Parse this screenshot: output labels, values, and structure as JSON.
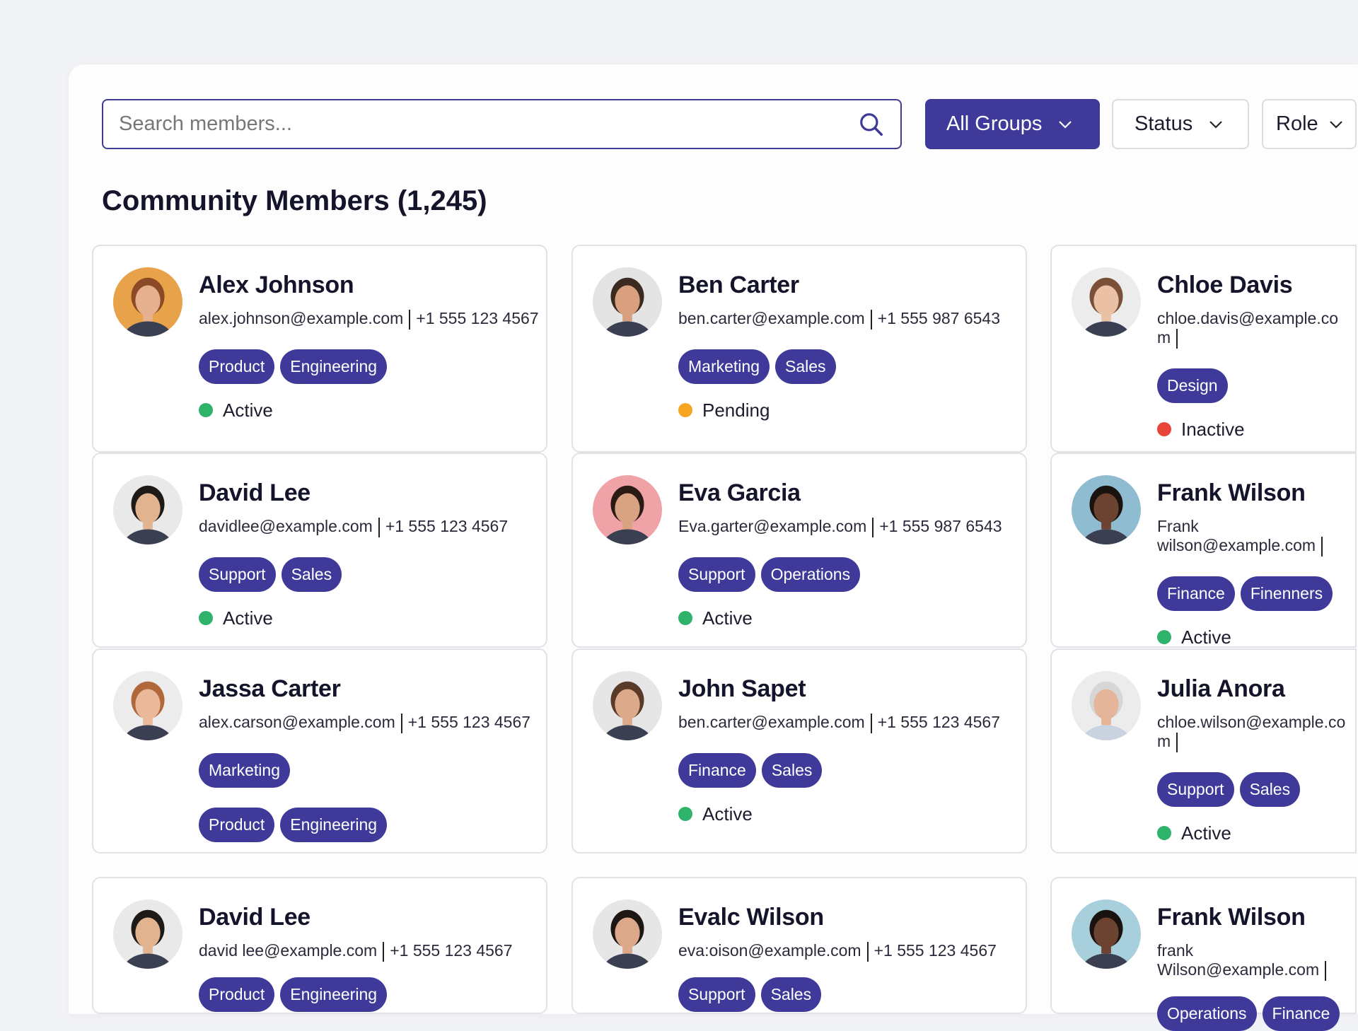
{
  "search": {
    "placeholder": "Search members..."
  },
  "filters": {
    "groups": "All Groups",
    "status": "Status",
    "role": "Role"
  },
  "title": "Community Members (1,245)",
  "colors": {
    "accent": "#3f3a99",
    "active": "#2fb36b",
    "pending": "#f6a623",
    "inactive": "#e8443a"
  },
  "members": [
    {
      "name": "Alex Johnson",
      "email": "alex.johnson@example.com",
      "phone": "+1 555 123 4567",
      "tags": [
        "Product",
        "Engineering"
      ],
      "status": "Active",
      "status_key": "active",
      "avatar_bg": "#e8a24a",
      "skin": "#e6b08f",
      "hair": "#8a4a25"
    },
    {
      "name": "Ben Carter",
      "email": "ben.carter@example.com",
      "phone": "+1 555 987 6543",
      "tags": [
        "Marketing",
        "Sales"
      ],
      "status": "Pending",
      "status_key": "pending",
      "avatar_bg": "#e4e4e4",
      "skin": "#d9a07f",
      "hair": "#3a2a20"
    },
    {
      "name": "Chloe Davis",
      "email": "chloe.davis@example.com",
      "phone": "",
      "tags": [
        "Design"
      ],
      "status": "Inactive",
      "status_key": "inactive",
      "avatar_bg": "#ececec",
      "skin": "#eac1a4",
      "hair": "#7a5038"
    },
    {
      "name": "David Lee",
      "email": "davidlee@example.com",
      "phone": "+1 555 123 4567",
      "tags": [
        "Support",
        "Sales"
      ],
      "status": "Active",
      "status_key": "active",
      "avatar_bg": "#e9e9e9",
      "skin": "#e2b38f",
      "hair": "#1e1a18"
    },
    {
      "name": "Eva Garcia",
      "email": "Eva.garter@example.com",
      "phone": "+1 555 987 6543",
      "tags": [
        "Support",
        "Operations"
      ],
      "status": "Active",
      "status_key": "active",
      "avatar_bg": "#f0a3a6",
      "skin": "#d9a283",
      "hair": "#2a1a14"
    },
    {
      "name": "Frank Wilson",
      "email": "Frank wilson@example.com",
      "phone": "",
      "tags": [
        "Finance",
        "Finenners"
      ],
      "status": "Active",
      "status_key": "active",
      "avatar_bg": "#8fbcd0",
      "skin": "#6b4330",
      "hair": "#1a120e"
    },
    {
      "name": "Jassa Carter",
      "email": "alex.carson@example.com",
      "phone": "+1 555 123 4567",
      "tags": [
        "Marketing"
      ],
      "tags2": [
        "Product",
        "Engineering"
      ],
      "status": "",
      "status_key": "",
      "avatar_bg": "#ececec",
      "skin": "#eab99a",
      "hair": "#b0683a"
    },
    {
      "name": "John Sapet",
      "email": "ben.carter@example.com",
      "phone": "+1 555 123 4567",
      "tags": [
        "Finance",
        "Sales"
      ],
      "status": "Active",
      "status_key": "active",
      "avatar_bg": "#e6e6e6",
      "skin": "#dcaa8a",
      "hair": "#5a3a28"
    },
    {
      "name": "Julia Anora",
      "email": "chloe.wilson@example.com",
      "phone": "",
      "tags": [
        "Support",
        "Sales"
      ],
      "status": "Active",
      "status_key": "active",
      "avatar_bg": "#ececec",
      "skin": "#e4b598",
      "hair": "#d6d6d6"
    },
    {
      "name": "David Lee",
      "email": "david lee@example.com",
      "phone": "+1 555 123 4567",
      "tags": [
        "Product",
        "Engineering"
      ],
      "status": "",
      "status_key": "",
      "avatar_bg": "#e9e9e9",
      "skin": "#e2b38f",
      "hair": "#1e1a18"
    },
    {
      "name": "Evalc Wilson",
      "email": "eva:oison@example.com",
      "phone": "+1 555 123 4567",
      "tags": [
        "Support",
        "Sales"
      ],
      "status": "",
      "status_key": "",
      "avatar_bg": "#e6e6e6",
      "skin": "#dca88a",
      "hair": "#1e1612"
    },
    {
      "name": "Frank Wilson",
      "email": "frank Wilson@example.com",
      "phone": "",
      "tags": [
        "Operations",
        "Finance"
      ],
      "status": "",
      "status_key": "",
      "avatar_bg": "#a7d0dc",
      "skin": "#6b4330",
      "hair": "#1a120e"
    }
  ]
}
